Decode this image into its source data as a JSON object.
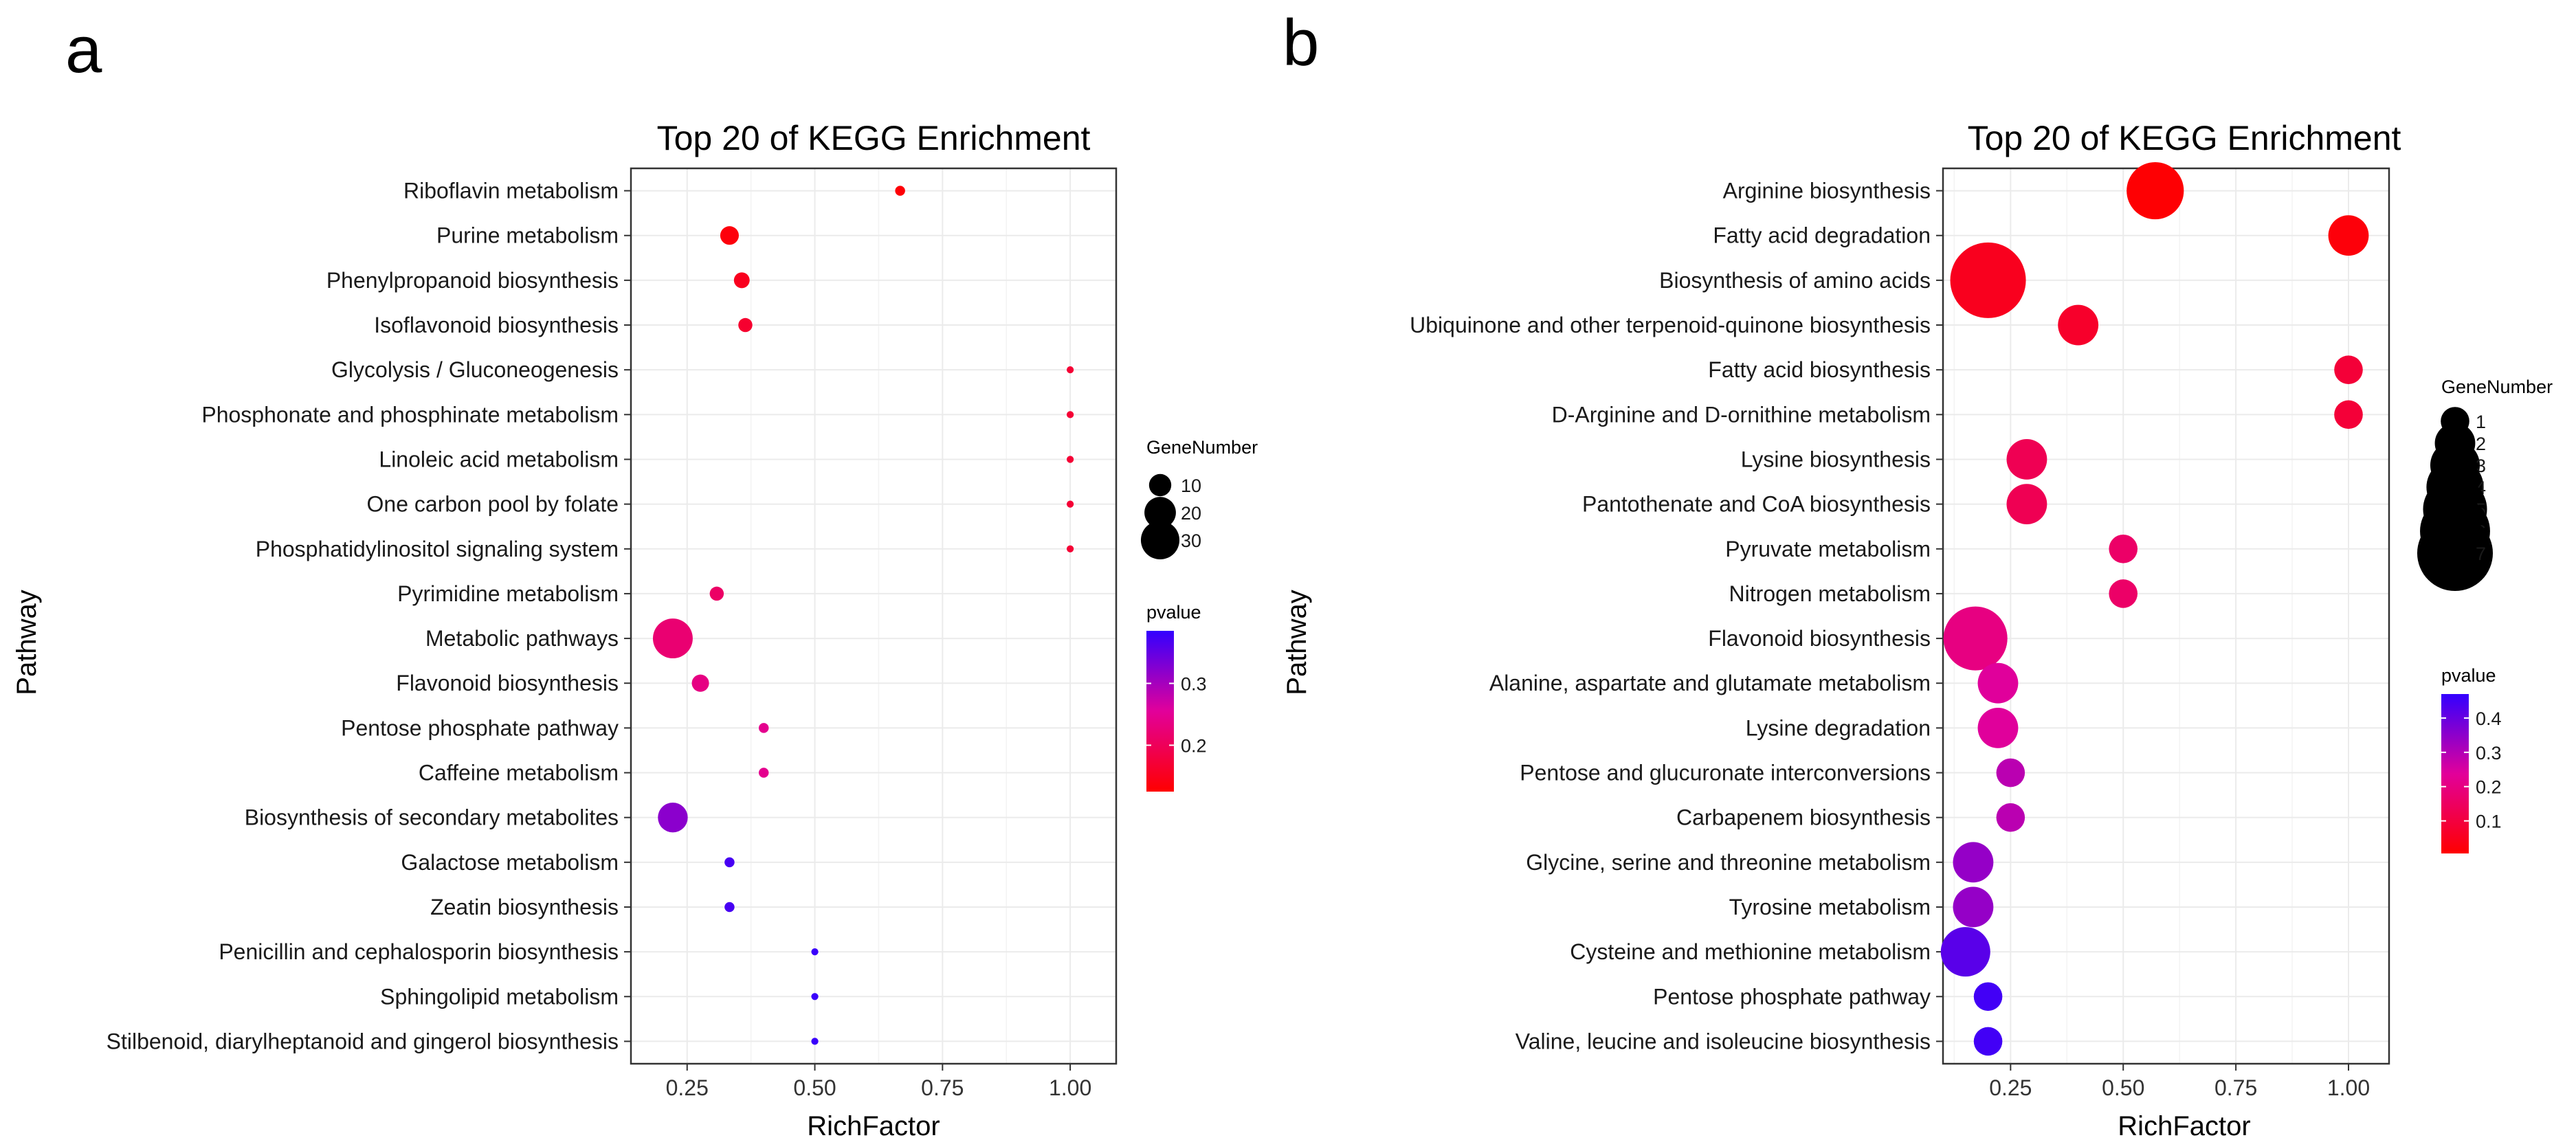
{
  "chart_data": [
    {
      "panel_label": "a",
      "type": "scatter",
      "title": "Top 20 of KEGG Enrichment",
      "xlabel": "RichFactor",
      "ylabel": "Pathway",
      "xlim": [
        0.14,
        1.09
      ],
      "xticks": [
        0.25,
        0.5,
        0.75,
        1.0
      ],
      "xtick_labels": [
        "0.25",
        "0.50",
        "0.75",
        "1.00"
      ],
      "grid": true,
      "legend_position": "right",
      "size_legend": {
        "title": "GeneNumber",
        "values": [
          10,
          20,
          30
        ],
        "labels": [
          "10",
          "20",
          "30"
        ]
      },
      "color_legend": {
        "title": "pvalue",
        "range": [
          0.125,
          0.385
        ],
        "ticks": [
          0.2,
          0.3
        ],
        "tick_labels": [
          "0.2",
          "0.3"
        ],
        "low_color": "#ff0000",
        "high_color": "#3300ff"
      },
      "points": [
        {
          "pathway": "Riboflavin metabolism",
          "richfactor": 0.667,
          "genenumber": 2,
          "pvalue": 0.13
        },
        {
          "pathway": "Purine metabolism",
          "richfactor": 0.333,
          "genenumber": 7,
          "pvalue": 0.135
        },
        {
          "pathway": "Phenylpropanoid biosynthesis",
          "richfactor": 0.357,
          "genenumber": 5,
          "pvalue": 0.15
        },
        {
          "pathway": "Isoflavonoid biosynthesis",
          "richfactor": 0.364,
          "genenumber": 4,
          "pvalue": 0.165
        },
        {
          "pathway": "Glycolysis / Gluconeogenesis",
          "richfactor": 1.0,
          "genenumber": 1,
          "pvalue": 0.17
        },
        {
          "pathway": "Phosphonate and phosphinate metabolism",
          "richfactor": 1.0,
          "genenumber": 1,
          "pvalue": 0.17
        },
        {
          "pathway": "Linoleic acid metabolism",
          "richfactor": 1.0,
          "genenumber": 1,
          "pvalue": 0.17
        },
        {
          "pathway": "One carbon pool by folate",
          "richfactor": 1.0,
          "genenumber": 1,
          "pvalue": 0.17
        },
        {
          "pathway": "Phosphatidylinositol signaling system",
          "richfactor": 1.0,
          "genenumber": 1,
          "pvalue": 0.17
        },
        {
          "pathway": "Pyrimidine metabolism",
          "richfactor": 0.308,
          "genenumber": 4,
          "pvalue": 0.21
        },
        {
          "pathway": "Metabolic pathways",
          "richfactor": 0.222,
          "genenumber": 32,
          "pvalue": 0.22
        },
        {
          "pathway": "Flavonoid biosynthesis",
          "richfactor": 0.276,
          "genenumber": 6,
          "pvalue": 0.235
        },
        {
          "pathway": "Pentose phosphate pathway",
          "richfactor": 0.4,
          "genenumber": 2,
          "pvalue": 0.245
        },
        {
          "pathway": "Caffeine metabolism",
          "richfactor": 0.4,
          "genenumber": 2,
          "pvalue": 0.245
        },
        {
          "pathway": "Biosynthesis of secondary metabolites",
          "richfactor": 0.222,
          "genenumber": 18,
          "pvalue": 0.32
        },
        {
          "pathway": "Galactose metabolism",
          "richfactor": 0.333,
          "genenumber": 2,
          "pvalue": 0.37
        },
        {
          "pathway": "Zeatin biosynthesis",
          "richfactor": 0.333,
          "genenumber": 2,
          "pvalue": 0.37
        },
        {
          "pathway": "Penicillin and cephalosporin biosynthesis",
          "richfactor": 0.5,
          "genenumber": 1,
          "pvalue": 0.38
        },
        {
          "pathway": "Sphingolipid metabolism",
          "richfactor": 0.5,
          "genenumber": 1,
          "pvalue": 0.38
        },
        {
          "pathway": "Stilbenoid, diarylheptanoid and gingerol biosynthesis",
          "richfactor": 0.5,
          "genenumber": 1,
          "pvalue": 0.38
        }
      ]
    },
    {
      "panel_label": "b",
      "type": "scatter",
      "title": "Top 20 of KEGG Enrichment",
      "xlabel": "RichFactor",
      "ylabel": "Pathway",
      "xlim": [
        0.1,
        1.09
      ],
      "xticks": [
        0.25,
        0.5,
        0.75,
        1.0
      ],
      "xtick_labels": [
        "0.25",
        "0.50",
        "0.75",
        "1.00"
      ],
      "grid": true,
      "legend_position": "right",
      "size_legend": {
        "title": "GeneNumber",
        "values": [
          1,
          2,
          3,
          4,
          5,
          6,
          7
        ],
        "labels": [
          "1",
          "2",
          "3",
          "4",
          "5",
          "6",
          "7"
        ]
      },
      "color_legend": {
        "title": "pvalue",
        "range": [
          0.005,
          0.47
        ],
        "ticks": [
          0.1,
          0.2,
          0.3,
          0.4
        ],
        "tick_labels": [
          "0.1",
          "0.2",
          "0.3",
          "0.4"
        ],
        "low_color": "#ff0000",
        "high_color": "#3300ff"
      },
      "points": [
        {
          "pathway": "Arginine biosynthesis",
          "richfactor": 0.571,
          "genenumber": 4,
          "pvalue": 0.01
        },
        {
          "pathway": "Fatty acid degradation",
          "richfactor": 1.0,
          "genenumber": 2,
          "pvalue": 0.02
        },
        {
          "pathway": "Biosynthesis of amino acids",
          "richfactor": 0.2,
          "genenumber": 7,
          "pvalue": 0.05
        },
        {
          "pathway": "Ubiquinone and other terpenoid-quinone biosynthesis",
          "richfactor": 0.4,
          "genenumber": 2,
          "pvalue": 0.07
        },
        {
          "pathway": "Fatty acid biosynthesis",
          "richfactor": 1.0,
          "genenumber": 1,
          "pvalue": 0.09
        },
        {
          "pathway": "D-Arginine and D-ornithine metabolism",
          "richfactor": 1.0,
          "genenumber": 1,
          "pvalue": 0.09
        },
        {
          "pathway": "Lysine biosynthesis",
          "richfactor": 0.286,
          "genenumber": 2,
          "pvalue": 0.13
        },
        {
          "pathway": "Pantothenate and CoA biosynthesis",
          "richfactor": 0.286,
          "genenumber": 2,
          "pvalue": 0.13
        },
        {
          "pathway": "Pyruvate metabolism",
          "richfactor": 0.5,
          "genenumber": 1,
          "pvalue": 0.16
        },
        {
          "pathway": "Nitrogen metabolism",
          "richfactor": 0.5,
          "genenumber": 1,
          "pvalue": 0.16
        },
        {
          "pathway": "Flavonoid biosynthesis",
          "richfactor": 0.172,
          "genenumber": 5,
          "pvalue": 0.2
        },
        {
          "pathway": "Alanine, aspartate and glutamate metabolism",
          "richfactor": 0.222,
          "genenumber": 2,
          "pvalue": 0.24
        },
        {
          "pathway": "Lysine degradation",
          "richfactor": 0.222,
          "genenumber": 2,
          "pvalue": 0.24
        },
        {
          "pathway": "Pentose and glucuronate interconversions",
          "richfactor": 0.25,
          "genenumber": 1,
          "pvalue": 0.29
        },
        {
          "pathway": "Carbapenem biosynthesis",
          "richfactor": 0.25,
          "genenumber": 1,
          "pvalue": 0.29
        },
        {
          "pathway": "Glycine, serine and threonine metabolism",
          "richfactor": 0.167,
          "genenumber": 2,
          "pvalue": 0.34
        },
        {
          "pathway": "Tyrosine metabolism",
          "richfactor": 0.167,
          "genenumber": 2,
          "pvalue": 0.34
        },
        {
          "pathway": "Cysteine and methionine metabolism",
          "richfactor": 0.15,
          "genenumber": 3,
          "pvalue": 0.42
        },
        {
          "pathway": "Pentose phosphate pathway",
          "richfactor": 0.2,
          "genenumber": 1,
          "pvalue": 0.45
        },
        {
          "pathway": "Valine, leucine and isoleucine biosynthesis",
          "richfactor": 0.2,
          "genenumber": 1,
          "pvalue": 0.45
        }
      ]
    }
  ]
}
